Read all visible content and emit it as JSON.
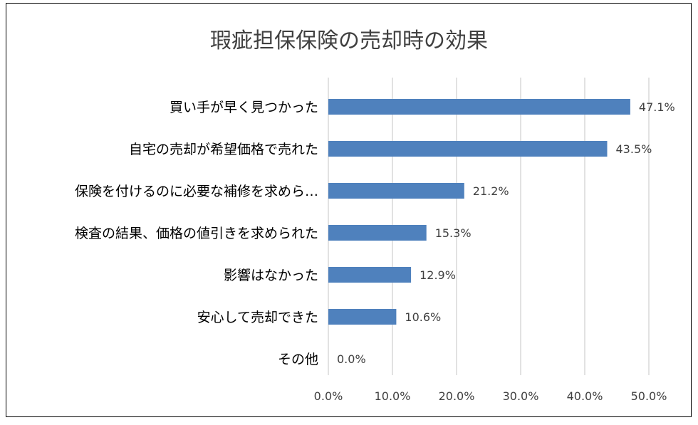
{
  "chart_data": {
    "type": "bar",
    "orientation": "horizontal",
    "title": "瑕疵担保保険の売却時の効果",
    "categories": [
      "買い手が早く見つかった",
      "自宅の売却が希望価格で売れた",
      "保険を付けるのに必要な補修を求めら…",
      "検査の結果、価格の値引きを求められた",
      "影響はなかった",
      "安心して売却できた",
      "その他"
    ],
    "values": [
      47.1,
      43.5,
      21.2,
      15.3,
      12.9,
      10.6,
      0.0
    ],
    "data_labels": [
      "47.1%",
      "43.5%",
      "21.2%",
      "15.3%",
      "12.9%",
      "10.6%",
      "0.0%"
    ],
    "x_ticks": [
      "0.0%",
      "10.0%",
      "20.0%",
      "30.0%",
      "40.0%",
      "50.0%"
    ],
    "xlim": [
      0,
      50
    ],
    "xlabel": "",
    "ylabel": "",
    "grid": "vertical",
    "legend": "none",
    "colors": {
      "bar": "#4f81bd",
      "grid": "#d9d9d9",
      "text": "#404040"
    }
  }
}
